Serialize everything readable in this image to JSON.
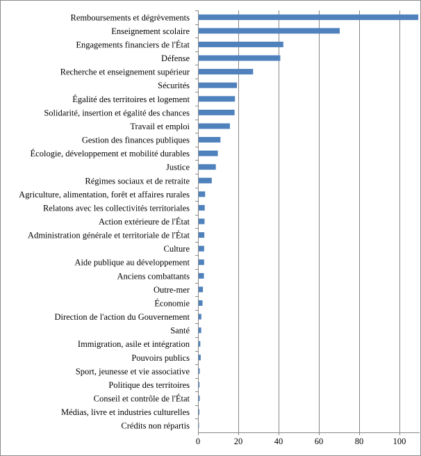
{
  "chart_data": {
    "type": "bar",
    "orientation": "horizontal",
    "title": "",
    "xlabel": "",
    "ylabel": "",
    "categories": [
      "Remboursements et dégrèvements",
      "Enseignement scolaire",
      "Engagements financiers de l'État",
      "Défense",
      "Recherche et enseignement supérieur",
      "Sécurités",
      "Égalité des territoires et logement",
      "Solidarité, insertion et égalité des chances",
      "Travail et emploi",
      "Gestion des finances publiques",
      "Écologie, développement et mobilité durables",
      "Justice",
      "Régimes sociaux et de retraite",
      "Agriculture, alimentation, forêt et affaires rurales",
      "Relatons avec les collectivités territoriales",
      "Action extérieure de l'État",
      "Administration générale et territoriale de l'État",
      "Culture",
      "Aide publique au développement",
      "Anciens combattants",
      "Outre-mer",
      "Économie",
      "Direction de l'action du Gouvernement",
      "Santé",
      "Immigration, asile et intégration",
      "Pouvoirs publics",
      "Sport, jeunesse et vie associative",
      "Politique des territoires",
      "Conseil et contrôle de l'État",
      "Médias, livre et industries culturelles",
      "Crédits non répartis"
    ],
    "values": [
      109,
      70,
      42,
      40.5,
      27,
      19,
      18,
      17.8,
      15.5,
      10.8,
      9.5,
      8.5,
      6.5,
      3.2,
      3.0,
      2.9,
      2.8,
      2.7,
      2.7,
      2.6,
      2.1,
      1.9,
      1.3,
      1.25,
      0.8,
      1.0,
      0.5,
      0.4,
      0.5,
      0.35,
      0.15
    ],
    "xlim": [
      0,
      110
    ],
    "xticks": [
      "0",
      "20",
      "40",
      "60",
      "80",
      "100"
    ],
    "xtick_values": [
      0,
      20,
      40,
      60,
      80,
      100
    ],
    "grid": "vertical",
    "legend": "none",
    "bar_color": "#4f81bd",
    "grid_color": "#868686",
    "axis_color": "#868686"
  }
}
